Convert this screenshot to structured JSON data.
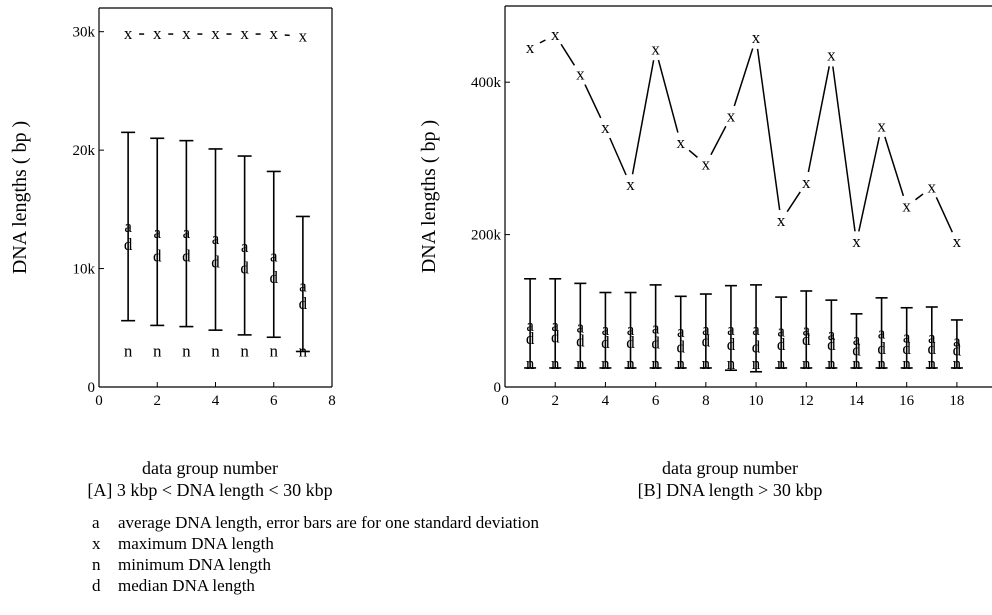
{
  "figure": {
    "panel_a": {
      "caption_line1": "data group number",
      "caption_line2": "[A] 3 kbp < DNA length < 30 kbp"
    },
    "panel_b": {
      "caption_line1": "data group number",
      "caption_line2": "[B] DNA length > 30 kbp"
    },
    "legend": [
      {
        "symbol": "a",
        "text": "average DNA length, error bars are for one standard deviation"
      },
      {
        "symbol": "x",
        "text": "maximum DNA length"
      },
      {
        "symbol": "n",
        "text": "minimum DNA length"
      },
      {
        "symbol": "d",
        "text": "median DNA length"
      }
    ]
  },
  "chart_data": [
    {
      "type": "scatter",
      "title": "",
      "xlabel": "data group number",
      "ylabel": "DNA lengths ( bp )",
      "xlim": [
        0,
        8
      ],
      "ylim": [
        0,
        32000
      ],
      "xticks": [
        0,
        2,
        4,
        6,
        8
      ],
      "yticks": [
        0,
        10000,
        20000,
        30000
      ],
      "ytick_labels": [
        "0",
        "10k",
        "20k",
        "30k"
      ],
      "max_dashed_line": true,
      "x": [
        1,
        2,
        3,
        4,
        5,
        6,
        7
      ],
      "series": [
        {
          "symbol": "x",
          "values": [
            29800,
            29800,
            29800,
            29800,
            29800,
            29800,
            29600
          ]
        },
        {
          "symbol": "a",
          "values": [
            13500,
            13000,
            13000,
            12500,
            11800,
            11000,
            8500
          ]
        },
        {
          "symbol": "d",
          "values": [
            12000,
            11000,
            11000,
            10500,
            10000,
            9200,
            7000
          ]
        },
        {
          "symbol": "n",
          "values": [
            3000,
            3000,
            3000,
            3000,
            3000,
            3000,
            3000
          ]
        }
      ],
      "error_bars": {
        "upper": [
          21500,
          21000,
          20800,
          20100,
          19500,
          18200,
          14400
        ],
        "lower": [
          5600,
          5200,
          5100,
          4800,
          4400,
          4200,
          3000
        ]
      }
    },
    {
      "type": "line",
      "title": "",
      "xlabel": "data group number",
      "ylabel": "DNA lengths ( bp )",
      "xlim": [
        0,
        19
      ],
      "ylim": [
        0,
        500000
      ],
      "xticks": [
        0,
        2,
        4,
        6,
        8,
        10,
        12,
        14,
        16,
        18
      ],
      "yticks": [
        0,
        200000,
        400000
      ],
      "ytick_labels": [
        "0",
        "200k",
        "400k"
      ],
      "x": [
        1,
        2,
        3,
        4,
        5,
        6,
        7,
        8,
        9,
        10,
        11,
        12,
        13,
        14,
        15,
        16,
        17,
        18
      ],
      "series": [
        {
          "symbol": "x",
          "values": [
            445000,
            462000,
            410000,
            340000,
            265000,
            443000,
            320000,
            292000,
            355000,
            458000,
            218000,
            268000,
            435000,
            190000,
            342000,
            237000,
            262000,
            190000
          ]
        },
        {
          "symbol": "a",
          "values": [
            80000,
            80000,
            78000,
            75000,
            75000,
            77000,
            72000,
            75000,
            75000,
            75000,
            73000,
            74000,
            68000,
            62000,
            70000,
            65000,
            64000,
            60000
          ]
        },
        {
          "symbol": "d",
          "values": [
            63000,
            65000,
            60000,
            58000,
            58000,
            57000,
            52000,
            60000,
            55000,
            52000,
            55000,
            62000,
            55000,
            48000,
            50000,
            50000,
            50000,
            48000
          ]
        },
        {
          "symbol": "n",
          "values": [
            30000,
            30000,
            30000,
            30000,
            30000,
            30000,
            30000,
            30000,
            30000,
            30000,
            30000,
            30000,
            30000,
            30000,
            30000,
            30000,
            30000,
            30000
          ]
        }
      ],
      "error_bars": {
        "upper": [
          142000,
          142000,
          136000,
          124000,
          124000,
          134000,
          119000,
          122000,
          133000,
          134000,
          118000,
          126000,
          114000,
          96000,
          117000,
          104000,
          105000,
          88000
        ],
        "lower": [
          25000,
          25000,
          25000,
          25000,
          25000,
          25000,
          25000,
          25000,
          22000,
          20000,
          25000,
          25000,
          25000,
          25000,
          25000,
          25000,
          25000,
          25000
        ]
      }
    }
  ]
}
